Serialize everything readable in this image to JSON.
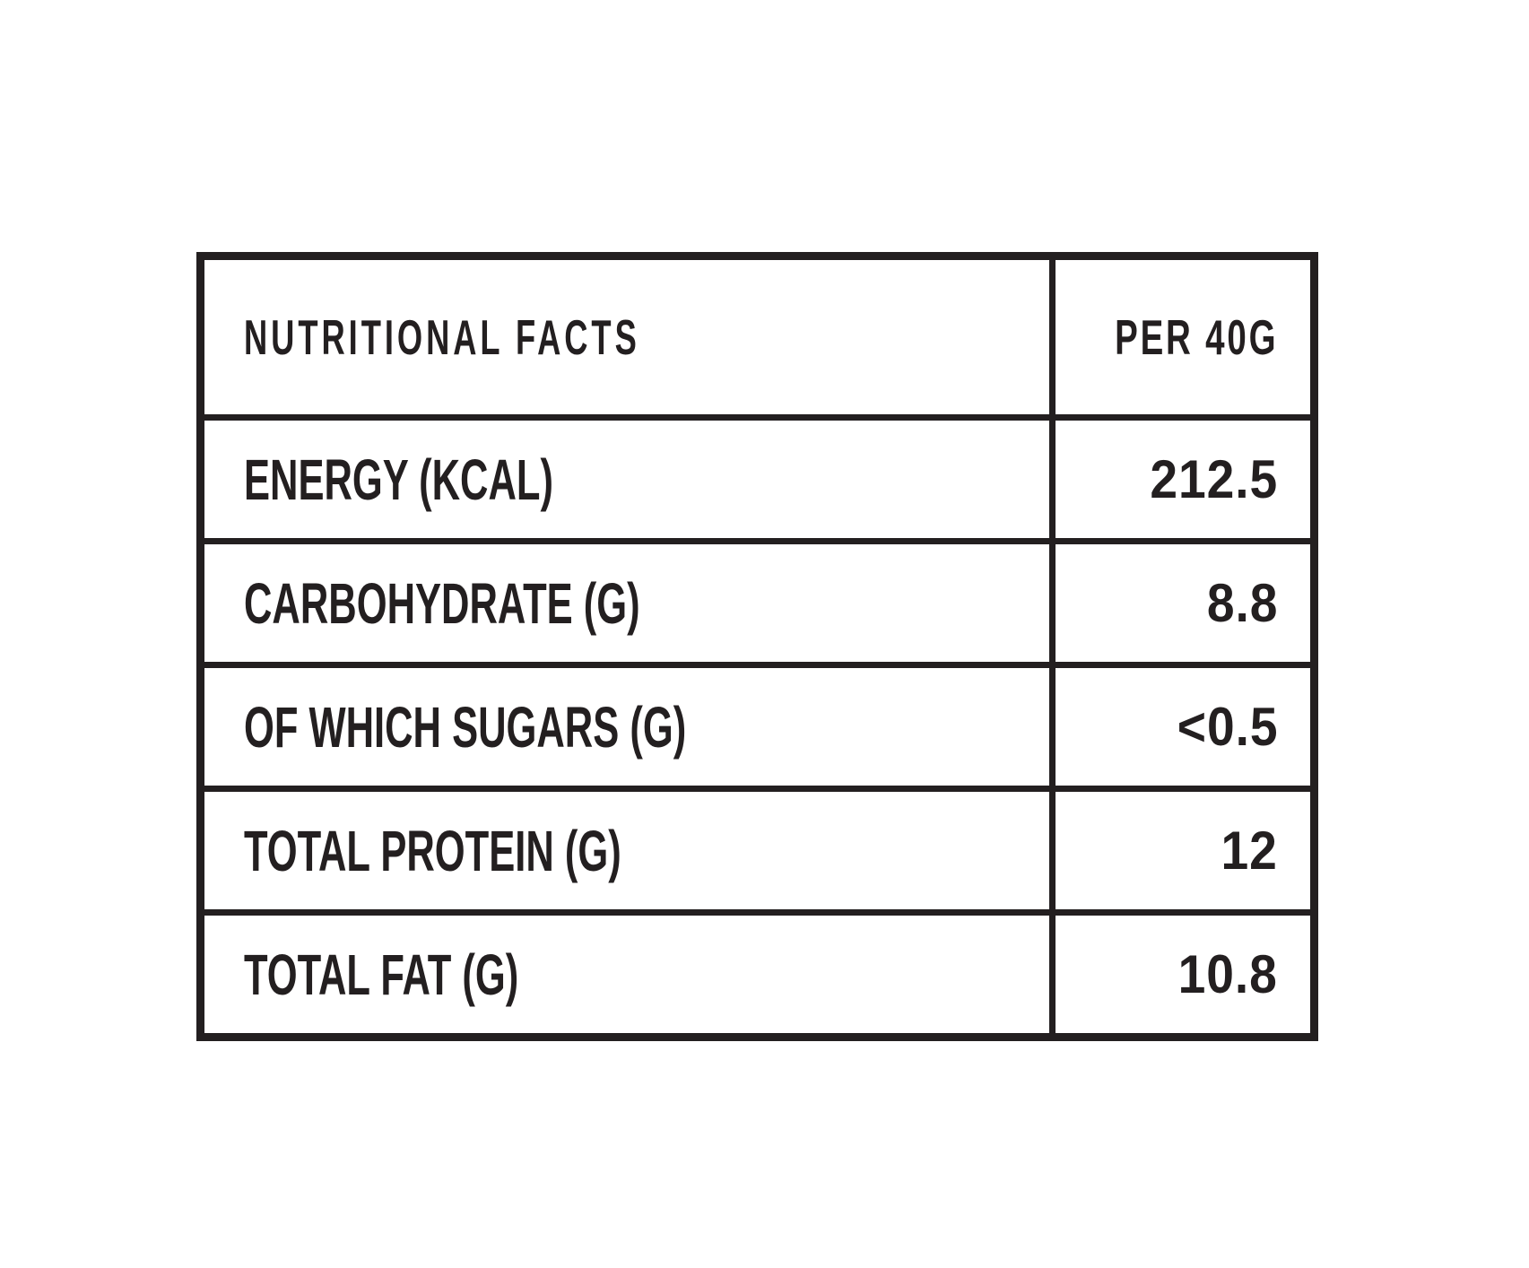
{
  "colors": {
    "ink": "#231f20",
    "background": "#ffffff"
  },
  "table": {
    "header": {
      "label": "NUTRITIONAL FACTS",
      "value": "PER 40G"
    },
    "rows": [
      {
        "label": "ENERGY (KCAL)",
        "value": "212.5"
      },
      {
        "label": "CARBOHYDRATE (G)",
        "value": "8.8"
      },
      {
        "label": "OF WHICH SUGARS (G)",
        "value": "<0.5"
      },
      {
        "label": "TOTAL PROTEIN (G)",
        "value": "12"
      },
      {
        "label": "TOTAL FAT (G)",
        "value": "10.8"
      }
    ]
  }
}
